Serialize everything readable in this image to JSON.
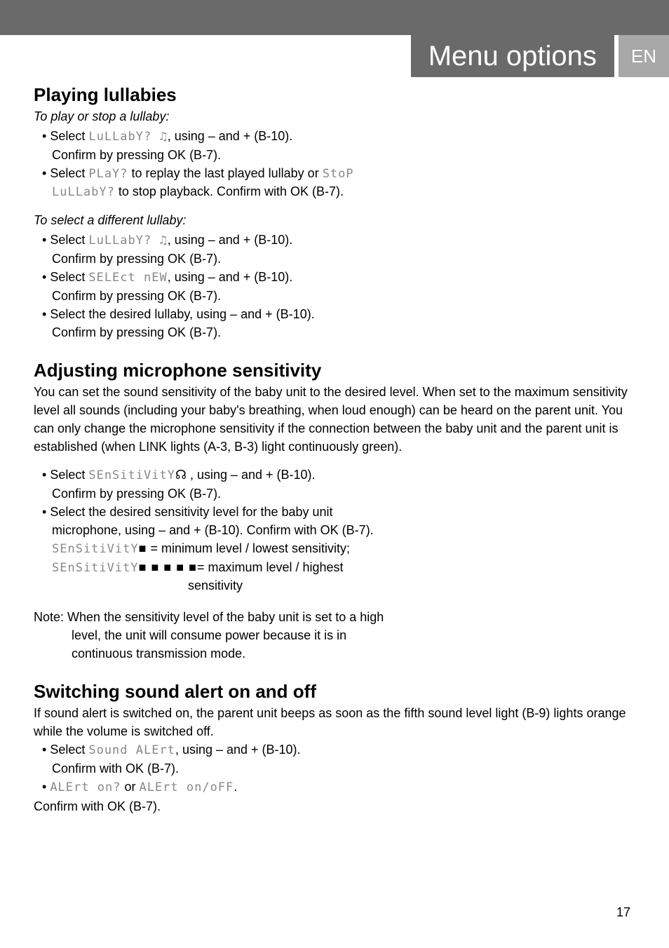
{
  "header": {
    "title": "Menu options",
    "lang": "EN"
  },
  "colors": {
    "header_bg": "#6a6a6a",
    "lang_bg": "#a8a8a8",
    "header_text": "#ffffff",
    "segment_text": "#888888",
    "body_text": "#000000",
    "background": "#ffffff"
  },
  "page_number": "17",
  "sections": {
    "lullabies": {
      "heading": "Playing lullabies",
      "sub1": "To play or stop a lullaby:",
      "items1": [
        {
          "pre": "Select ",
          "seg": "LuLLabY? ♫",
          "post": ", using – and + (B-10).",
          "cont": "Confirm by pressing OK (B-7)."
        },
        {
          "pre": "Select ",
          "seg": "PLaY?",
          "mid": " to replay the last played lullaby or ",
          "seg2": "StoP",
          "cont_seg": "LuLLabY?",
          "cont_post": " to stop playback. Confirm with OK (B-7)."
        }
      ],
      "sub2": "To select a different lullaby:",
      "items2": [
        {
          "pre": "Select ",
          "seg": "LuLLabY? ♫",
          "post": ", using – and + (B-10).",
          "cont": "Confirm by pressing OK (B-7)."
        },
        {
          "pre": "Select ",
          "seg": "SELEct nEW",
          "post": ", using – and + (B-10).",
          "cont": "Confirm by pressing OK (B-7)."
        },
        {
          "pre": "Select the desired lullaby, using – and + (B-10).",
          "cont": "Confirm by pressing OK (B-7)."
        }
      ]
    },
    "sensitivity": {
      "heading": "Adjusting microphone sensitivity",
      "body": "You can set the sound sensitivity of the baby unit to the desired level. When set to the maximum sensitivity level all sounds (including your baby's breathing, when loud enough) can be heard on the parent unit. You can only change the microphone sensitivity if the connection between the baby unit and the parent unit is established (when LINK lights (A-3, B-3) light continuously green).",
      "items": [
        {
          "pre": "Select ",
          "seg": "SEnSitiVitY",
          "icon": "☊",
          "post": " , using – and + (B-10).",
          "cont": "Confirm by pressing OK (B-7)."
        },
        {
          "line1": "Select the desired sensitivity level for the baby unit",
          "line2": "microphone, using – and + (B-10). Confirm with OK (B-7).",
          "min_seg": "SEnSitiVitY",
          "min_blocks": "■",
          "min_post": " = minimum level / lowest sensitivity;",
          "max_seg": "SEnSitiVitY",
          "max_blocks": "■ ■ ■ ■ ■",
          "max_post": "= maximum level / highest",
          "max_cont": "sensitivity"
        }
      ],
      "note_label": "Note:",
      "note_line1": "When the sensitivity level of the baby unit is set to a high",
      "note_line2": "level, the unit will consume power because it is in",
      "note_line3": "continuous transmission mode."
    },
    "alert": {
      "heading": "Switching sound alert on and off",
      "body": "If sound alert is switched on, the parent unit beeps as soon as the fifth sound level light (B-9) lights orange while the volume is switched off.",
      "items": [
        {
          "pre": "Select ",
          "seg": "Sound ALErt",
          "post": ", using – and + (B-10).",
          "cont": "Confirm with OK (B-7)."
        },
        {
          "seg1": "ALErt on?",
          "mid": " or ",
          "seg2": "ALErt on/oFF",
          "post": "."
        }
      ],
      "confirm": "Confirm with OK (B-7)."
    }
  }
}
